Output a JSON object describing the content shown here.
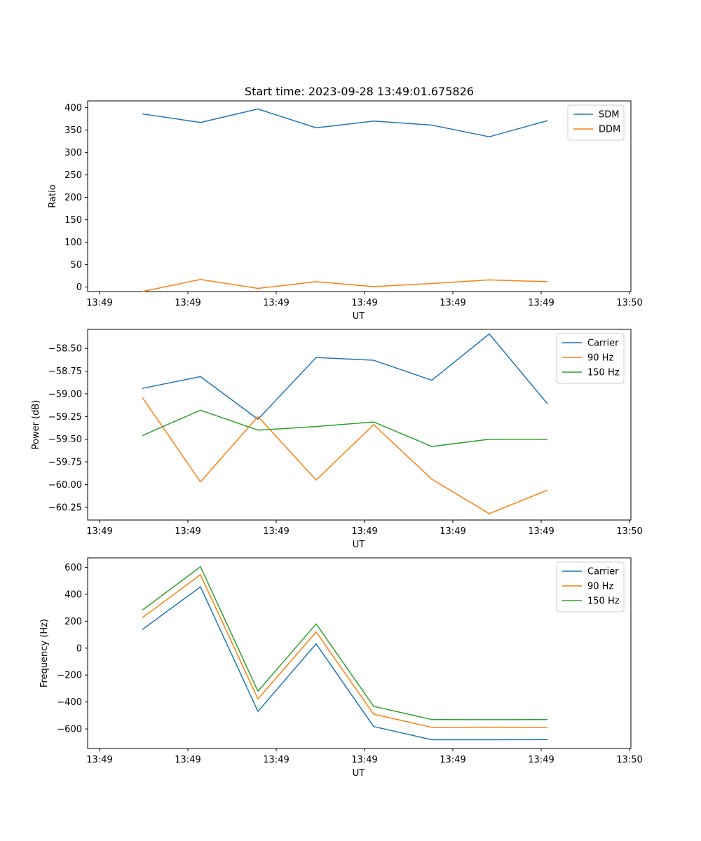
{
  "figure": {
    "title": "Start time: 2023-09-28 13:49:01.675826"
  },
  "chart_data": [
    {
      "type": "line",
      "title": "Start time: 2023-09-28 13:49:01.675826",
      "xlabel": "UT",
      "ylabel": "Ratio",
      "x_tick_labels": [
        "13:49",
        "13:49",
        "13:49",
        "13:49",
        "13:49",
        "13:49",
        "13:50"
      ],
      "x_points": 8,
      "y_ticks": [
        0,
        50,
        100,
        150,
        200,
        250,
        300,
        350,
        400
      ],
      "y_tick_labels": [
        "0",
        "50",
        "100",
        "150",
        "200",
        "250",
        "300",
        "350",
        "400"
      ],
      "ylim": [
        -10,
        415
      ],
      "legend_position": "top-right",
      "series": [
        {
          "name": "SDM",
          "color": "#1f77b4",
          "values": [
            386,
            367,
            397,
            355,
            370,
            361,
            335,
            371
          ]
        },
        {
          "name": "DDM",
          "color": "#ff7f0e",
          "values": [
            -10,
            17,
            -3,
            12,
            1,
            8,
            16,
            12
          ]
        }
      ]
    },
    {
      "type": "line",
      "title": "",
      "xlabel": "UT",
      "ylabel": "Power (dB)",
      "x_tick_labels": [
        "13:49",
        "13:49",
        "13:49",
        "13:49",
        "13:49",
        "13:49",
        "13:50"
      ],
      "x_points": 8,
      "y_ticks": [
        -60.25,
        -60.0,
        -59.75,
        -59.5,
        -59.25,
        -59.0,
        -58.75,
        -58.5
      ],
      "y_tick_labels": [
        "−60.25",
        "−60.00",
        "−59.75",
        "−59.50",
        "−59.25",
        "−59.00",
        "−58.75",
        "−58.50"
      ],
      "ylim": [
        -60.39,
        -58.29
      ],
      "legend_position": "top-right",
      "series": [
        {
          "name": "Carrier",
          "color": "#1f77b4",
          "values": [
            -58.94,
            -58.81,
            -59.28,
            -58.6,
            -58.63,
            -58.85,
            -58.34,
            -59.11
          ]
        },
        {
          "name": "90 Hz",
          "color": "#ff7f0e",
          "values": [
            -59.04,
            -59.97,
            -59.25,
            -59.95,
            -59.34,
            -59.94,
            -60.32,
            -60.06
          ]
        },
        {
          "name": "150 Hz",
          "color": "#2ca02c",
          "values": [
            -59.46,
            -59.18,
            -59.4,
            -59.36,
            -59.31,
            -59.58,
            -59.5,
            -59.5
          ]
        }
      ]
    },
    {
      "type": "line",
      "title": "",
      "xlabel": "UT",
      "ylabel": "Frequency (Hz)",
      "x_tick_labels": [
        "13:49",
        "13:49",
        "13:49",
        "13:49",
        "13:49",
        "13:49",
        "13:50"
      ],
      "x_points": 8,
      "y_ticks": [
        -600,
        -400,
        -200,
        0,
        200,
        400,
        600
      ],
      "y_tick_labels": [
        "−600",
        "−400",
        "−200",
        "0",
        "200",
        "400",
        "600"
      ],
      "ylim": [
        -745,
        670
      ],
      "legend_position": "top-right",
      "series": [
        {
          "name": "Carrier",
          "color": "#1f77b4",
          "values": [
            138,
            455,
            -470,
            32,
            -582,
            -680,
            -680,
            -679
          ]
        },
        {
          "name": "90 Hz",
          "color": "#ff7f0e",
          "values": [
            225,
            545,
            -377,
            120,
            -490,
            -588,
            -587,
            -588
          ]
        },
        {
          "name": "150 Hz",
          "color": "#2ca02c",
          "values": [
            282,
            604,
            -320,
            180,
            -432,
            -530,
            -531,
            -530
          ]
        }
      ]
    }
  ]
}
